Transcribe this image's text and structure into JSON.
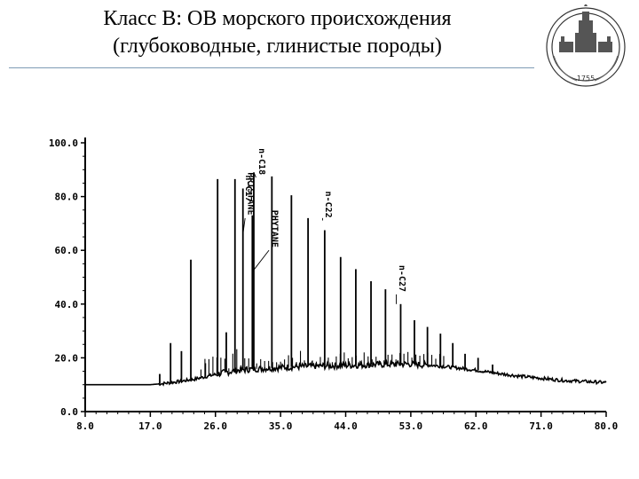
{
  "slide": {
    "title_line1": "Класс B: ОВ морского происхождения",
    "title_line2": "(глубоководные, глинистые породы)",
    "logo_year": "1755"
  },
  "chart_data": {
    "type": "line",
    "title": "",
    "xlabel": "",
    "ylabel": "",
    "xlim": [
      8.0,
      80.0
    ],
    "ylim": [
      0.0,
      100.0
    ],
    "xticks": [
      8.0,
      17.0,
      26.0,
      35.0,
      44.0,
      53.0,
      62.0,
      71.0,
      80.0
    ],
    "xtick_labels": [
      "8.0",
      "17.0",
      "26.0",
      "35.0",
      "44.0",
      "53.0",
      "62.0",
      "71.0",
      "80.0"
    ],
    "yticks": [
      0,
      20,
      40,
      60,
      80,
      100
    ],
    "ytick_labels": [
      "0.0",
      "20.0",
      "40.0",
      "60.0",
      "80.0",
      "100.0"
    ],
    "grid": false,
    "baseline": [
      [
        8.0,
        10.0
      ],
      [
        17.0,
        10.0
      ],
      [
        19.0,
        10.5
      ],
      [
        21.0,
        11.2
      ],
      [
        23.0,
        12.0
      ],
      [
        25.0,
        13.2
      ],
      [
        27.0,
        14.4
      ],
      [
        29.0,
        15.3
      ],
      [
        31.0,
        15.8
      ],
      [
        33.0,
        16.1
      ],
      [
        35.0,
        16.4
      ],
      [
        38.0,
        16.8
      ],
      [
        41.0,
        17.0
      ],
      [
        44.0,
        17.2
      ],
      [
        47.0,
        17.4
      ],
      [
        50.0,
        17.6
      ],
      [
        53.0,
        17.7
      ],
      [
        56.0,
        17.2
      ],
      [
        59.0,
        16.4
      ],
      [
        62.0,
        15.4
      ],
      [
        65.0,
        14.2
      ],
      [
        68.0,
        13.2
      ],
      [
        71.0,
        12.4
      ],
      [
        74.0,
        11.6
      ],
      [
        77.0,
        11.2
      ],
      [
        80.0,
        10.8
      ]
    ],
    "peaks": [
      {
        "x": 18.3,
        "y": 14.0
      },
      {
        "x": 19.8,
        "y": 25.5
      },
      {
        "x": 21.3,
        "y": 22.5
      },
      {
        "x": 22.6,
        "y": 56.5
      },
      {
        "x": 24.6,
        "y": 18.0
      },
      {
        "x": 26.3,
        "y": 86.5
      },
      {
        "x": 27.5,
        "y": 29.5
      },
      {
        "x": 28.7,
        "y": 86.5
      },
      {
        "x": 29.8,
        "y": 83.0
      },
      {
        "x": 31.1,
        "y": 73.0
      },
      {
        "x": 31.3,
        "y": 89.0
      },
      {
        "x": 33.8,
        "y": 87.5
      },
      {
        "x": 36.5,
        "y": 80.5
      },
      {
        "x": 38.8,
        "y": 72.0
      },
      {
        "x": 41.1,
        "y": 67.5
      },
      {
        "x": 43.3,
        "y": 57.5
      },
      {
        "x": 45.4,
        "y": 53.0
      },
      {
        "x": 47.5,
        "y": 48.5
      },
      {
        "x": 49.5,
        "y": 45.5
      },
      {
        "x": 51.6,
        "y": 40.0
      },
      {
        "x": 53.5,
        "y": 34.0
      },
      {
        "x": 55.3,
        "y": 31.5
      },
      {
        "x": 57.1,
        "y": 29.0
      },
      {
        "x": 58.8,
        "y": 25.5
      },
      {
        "x": 60.5,
        "y": 21.5
      },
      {
        "x": 62.3,
        "y": 20.0
      },
      {
        "x": 64.3,
        "y": 17.5
      }
    ],
    "annotations": [
      {
        "text": "n-C17",
        "x": 29.8,
        "y": 88.0
      },
      {
        "text": "n-C18",
        "x": 31.6,
        "y": 98.0
      },
      {
        "text": "PRISTANE",
        "x": 30.1,
        "y": 89.0
      },
      {
        "text": "PHYTANE",
        "x": 33.4,
        "y": 75.0
      },
      {
        "text": "n-C22",
        "x": 40.8,
        "y": 82.0
      },
      {
        "text": "n-C27",
        "x": 51.0,
        "y": 54.5
      }
    ]
  }
}
